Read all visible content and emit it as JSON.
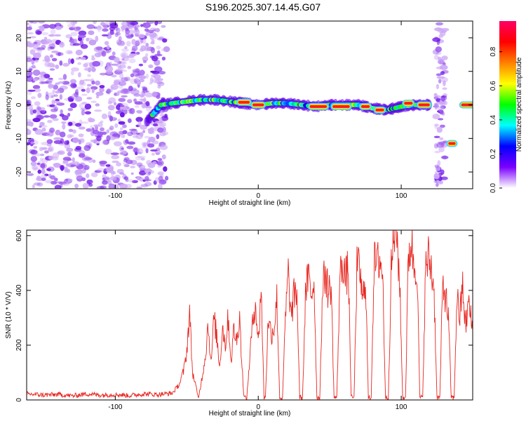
{
  "page_title": "S196.2025.307.14.45.G07",
  "chart_data": [
    {
      "type": "heatmap",
      "panel": "top",
      "title": "S196.2025.307.14.45.G07",
      "xlabel": "Height of straight line (km)",
      "ylabel": "Frequency (Hz)",
      "xlim": [
        -162,
        150
      ],
      "ylim": [
        -25,
        25
      ],
      "x_ticks": [
        -100,
        0,
        100
      ],
      "x_tick_labels": [
        "-100",
        "0",
        "100"
      ],
      "y_ticks": [
        20,
        10,
        0,
        -10,
        -20
      ],
      "y_tick_labels": [
        "20",
        "10",
        "0",
        "-10",
        "-20"
      ],
      "colorbar": {
        "label": "Normalized spectral amplitude",
        "range": [
          0,
          0.98
        ],
        "ticks": [
          0.0,
          0.2,
          0.4,
          0.6,
          0.8
        ],
        "tick_labels": [
          "0.0",
          "0.2",
          "0.4",
          "0.6",
          "0.8"
        ],
        "colormap": [
          "#ffffff",
          "#7b00ff",
          "#0000ff",
          "#00ffff",
          "#00ff00",
          "#ffff00",
          "#ff8000",
          "#ff0000",
          "#ff0066"
        ]
      },
      "noise_regions": [
        {
          "x_from": -162,
          "x_to": -64,
          "density": "high"
        },
        {
          "x_from": 124,
          "x_to": 131,
          "density": "medium"
        }
      ],
      "ridge": {
        "x": [
          -78,
          -68,
          -60,
          -50,
          -40,
          -30,
          -20,
          -10,
          0,
          10,
          20,
          30,
          40,
          50,
          60,
          70,
          80,
          90,
          100,
          110,
          120
        ],
        "frequency": [
          -5,
          0,
          0.5,
          1,
          1.5,
          1.5,
          1,
          0.5,
          0,
          0.5,
          0.5,
          0,
          -0.5,
          0,
          0,
          0,
          -1,
          -1.5,
          -0.5,
          0,
          0
        ]
      },
      "red_peaks": [
        {
          "x_from": -14,
          "x_to": -6,
          "frequency": 0.8
        },
        {
          "x_from": -4,
          "x_to": 4,
          "frequency": 0
        },
        {
          "x_from": 36,
          "x_to": 48,
          "frequency": -0.5
        },
        {
          "x_from": 52,
          "x_to": 64,
          "frequency": -0.5
        },
        {
          "x_from": 72,
          "x_to": 78,
          "frequency": -0.5
        },
        {
          "x_from": 82,
          "x_to": 88,
          "frequency": -1.5
        },
        {
          "x_from": 102,
          "x_to": 108,
          "frequency": 0.5
        },
        {
          "x_from": 112,
          "x_to": 120,
          "frequency": 0
        },
        {
          "x_from": 133,
          "x_to": 138,
          "frequency": -11.5
        },
        {
          "x_from": 142,
          "x_to": 150,
          "frequency": 0
        }
      ]
    },
    {
      "type": "line",
      "panel": "bottom",
      "xlabel": "Height of straight line (km)",
      "ylabel": "SNR (10 * V/V)",
      "xlim": [
        -162,
        150
      ],
      "ylim": [
        0,
        620
      ],
      "x_ticks": [
        -100,
        0,
        100
      ],
      "x_tick_labels": [
        "-100",
        "0",
        "100"
      ],
      "y_ticks": [
        0,
        200,
        400,
        600
      ],
      "y_tick_labels": [
        "0",
        "200",
        "400",
        "600"
      ],
      "series": [
        {
          "name": "SNR",
          "color": "#e8251f",
          "x": [
            -162,
            -150,
            -140,
            -130,
            -120,
            -110,
            -100,
            -90,
            -80,
            -70,
            -60,
            -55,
            -52,
            -50,
            -48,
            -46,
            -44,
            -42,
            -40,
            -37,
            -35,
            -33,
            -31,
            -29,
            -27,
            -25,
            -23,
            -21,
            -19,
            -17,
            -15,
            -13,
            -12,
            -10,
            -8,
            -5,
            -2,
            0,
            2,
            4,
            5,
            7,
            9,
            11,
            13,
            15,
            17,
            19,
            21,
            23,
            25,
            27,
            29,
            31,
            33,
            35,
            37,
            39,
            41,
            43,
            45,
            47,
            49,
            51,
            53,
            55,
            57,
            59,
            61,
            63,
            65,
            67,
            69,
            71,
            73,
            75,
            77,
            79,
            81,
            83,
            85,
            87,
            89,
            91,
            93,
            95,
            97,
            99,
            101,
            103,
            105,
            107,
            109,
            111,
            113,
            115,
            117,
            119,
            121,
            123,
            125,
            127,
            129,
            131,
            133,
            135,
            137,
            139,
            141,
            143,
            145,
            147,
            150
          ],
          "values": [
            22,
            18,
            20,
            15,
            22,
            18,
            20,
            16,
            22,
            20,
            25,
            60,
            110,
            180,
            320,
            100,
            60,
            5,
            60,
            160,
            280,
            130,
            300,
            230,
            120,
            270,
            200,
            300,
            140,
            260,
            210,
            320,
            180,
            10,
            8,
            220,
            370,
            200,
            420,
            10,
            8,
            300,
            240,
            260,
            370,
            8,
            6,
            300,
            460,
            300,
            380,
            400,
            10,
            8,
            380,
            450,
            380,
            440,
            10,
            8,
            400,
            470,
            390,
            420,
            8,
            10,
            430,
            520,
            440,
            480,
            10,
            8,
            480,
            480,
            350,
            460,
            8,
            10,
            500,
            490,
            520,
            460,
            8,
            10,
            470,
            610,
            600,
            420,
            8,
            10,
            520,
            580,
            490,
            500,
            10,
            8,
            470,
            520,
            480,
            400,
            10,
            8,
            420,
            380,
            300,
            10,
            8,
            380,
            300,
            420,
            260,
            360,
            250
          ]
        }
      ]
    }
  ]
}
